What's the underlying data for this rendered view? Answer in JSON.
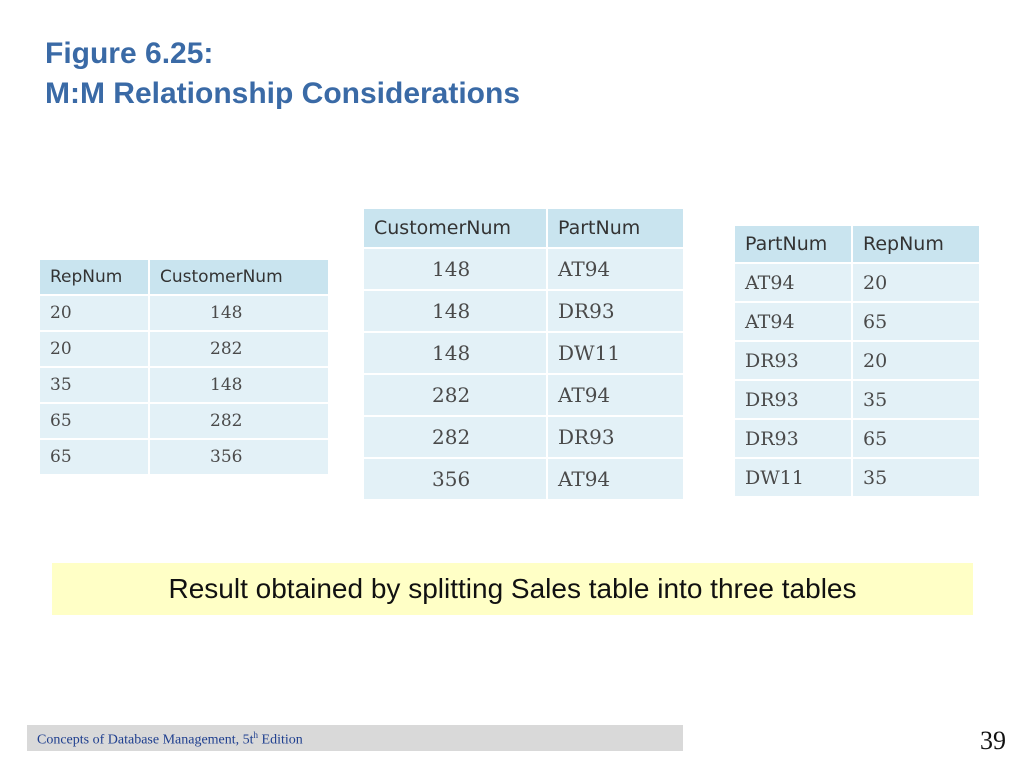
{
  "slide": {
    "title_line1": "Figure 6.25:",
    "title_line2": "M:M Relationship Considerations",
    "callout": "Result obtained by splitting Sales table into three tables",
    "footer_prefix": "Concepts of Database Management, 5t",
    "footer_sup": "h",
    "footer_suffix": " Edition",
    "page_number": "39"
  },
  "tables": {
    "rep_customer": {
      "headers": [
        "RepNum",
        "CustomerNum"
      ],
      "rows": [
        [
          "20",
          "148"
        ],
        [
          "20",
          "282"
        ],
        [
          "35",
          "148"
        ],
        [
          "65",
          "282"
        ],
        [
          "65",
          "356"
        ]
      ]
    },
    "customer_part": {
      "headers": [
        "CustomerNum",
        "PartNum"
      ],
      "rows": [
        [
          "148",
          "AT94"
        ],
        [
          "148",
          "DR93"
        ],
        [
          "148",
          "DW11"
        ],
        [
          "282",
          "AT94"
        ],
        [
          "282",
          "DR93"
        ],
        [
          "356",
          "AT94"
        ]
      ]
    },
    "part_rep": {
      "headers": [
        "PartNum",
        "RepNum"
      ],
      "rows": [
        [
          "AT94",
          "20"
        ],
        [
          "AT94",
          "65"
        ],
        [
          "DR93",
          "20"
        ],
        [
          "DR93",
          "35"
        ],
        [
          "DR93",
          "65"
        ],
        [
          "DW11",
          "35"
        ]
      ]
    }
  }
}
